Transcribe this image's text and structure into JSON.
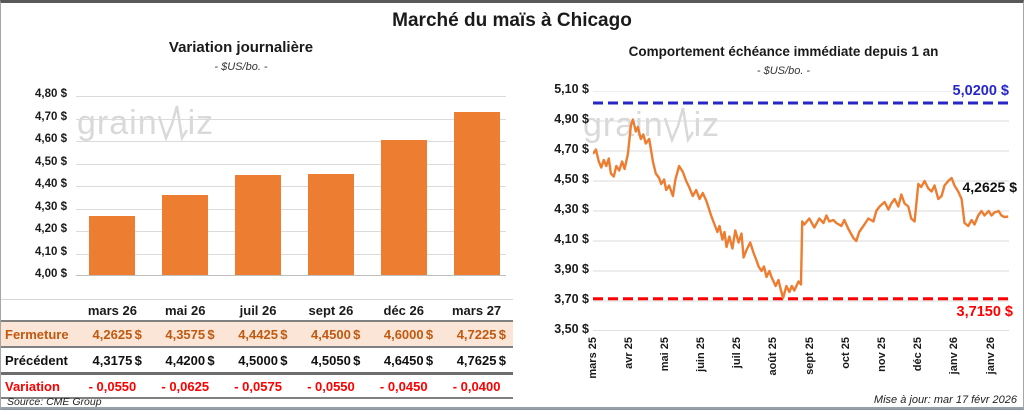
{
  "page": {
    "title": "Marché du maïs à Chicago",
    "source": "Source: CME Group",
    "updated": "Mise à jour: mar 17 févr 2026",
    "watermark": {
      "part1": "grain",
      "part2": "iz"
    }
  },
  "colors": {
    "accent_orange": "#ED7D31",
    "fermeture_bg": "#FBE5D6",
    "fermeture_text": "#C05A11",
    "negative_red": "#FE0000",
    "high_line_blue": "#2727C8",
    "low_line_red": "#FE0000",
    "gridline": "#DBDBDB",
    "watermark_gray": "#D9D9D9"
  },
  "chart_data": [
    {
      "id": "daily_variation_bar",
      "type": "bar",
      "title": "Variation journalière",
      "subtitle": "- $US/bo. -",
      "categories": [
        "mars 26",
        "mai 26",
        "juil 26",
        "sept 26",
        "déc 26",
        "mars 27"
      ],
      "values": [
        4.2625,
        4.3575,
        4.4425,
        4.45,
        4.6,
        4.7225
      ],
      "ylim": [
        4.0,
        4.8
      ],
      "y_tick_step": 0.1,
      "y_tick_labels": [
        "4,80 $",
        "4,70 $",
        "4,60 $",
        "4,50 $",
        "4,40 $",
        "4,30 $",
        "4,20 $",
        "4,10 $",
        "4,00 $"
      ],
      "grid": true,
      "legend": "none"
    },
    {
      "id": "front_month_line",
      "type": "line",
      "title": "Comportement échéance immédiate depuis 1 an",
      "subtitle": "- $US/bo. -",
      "x_tick_labels": [
        "mars 25",
        "avr 25",
        "mai 25",
        "juin 25",
        "juil 25",
        "août 25",
        "sept 25",
        "oct 25",
        "nov 25",
        "déc 25",
        "janv 26",
        "janv 26"
      ],
      "ylim": [
        3.5,
        5.1
      ],
      "y_tick_step": 0.2,
      "y_tick_labels": [
        "5,10 $",
        "4,90 $",
        "4,70 $",
        "4,50 $",
        "4,30 $",
        "4,10 $",
        "3,90 $",
        "3,70 $",
        "3,50 $"
      ],
      "high_line": {
        "value": 5.02,
        "label": "5,0200 $"
      },
      "low_line": {
        "value": 3.715,
        "label": "3,7150 $"
      },
      "last_value": 4.2625,
      "last_label": "4,2625 $",
      "grid": true,
      "legend": "none",
      "points": [
        [
          0,
          4.68
        ],
        [
          0.7,
          4.71
        ],
        [
          1.4,
          4.63
        ],
        [
          2,
          4.59
        ],
        [
          2.6,
          4.64
        ],
        [
          3.2,
          4.6
        ],
        [
          3.8,
          4.65
        ],
        [
          4.3,
          4.55
        ],
        [
          5,
          4.53
        ],
        [
          5.6,
          4.6
        ],
        [
          6.3,
          4.57
        ],
        [
          7,
          4.63
        ],
        [
          7.6,
          4.58
        ],
        [
          8.4,
          4.68
        ],
        [
          9.1,
          4.87
        ],
        [
          9.6,
          4.91
        ],
        [
          10.3,
          4.83
        ],
        [
          10.8,
          4.86
        ],
        [
          11.5,
          4.78
        ],
        [
          12.1,
          4.81
        ],
        [
          12.7,
          4.75
        ],
        [
          13.5,
          4.78
        ],
        [
          14.4,
          4.63
        ],
        [
          15.1,
          4.55
        ],
        [
          15.9,
          4.52
        ],
        [
          16.4,
          4.48
        ],
        [
          17.1,
          4.51
        ],
        [
          17.6,
          4.44
        ],
        [
          18.3,
          4.47
        ],
        [
          19.2,
          4.4
        ],
        [
          19.8,
          4.51
        ],
        [
          20.7,
          4.6
        ],
        [
          21.6,
          4.56
        ],
        [
          22.4,
          4.5
        ],
        [
          23.1,
          4.46
        ],
        [
          24,
          4.4
        ],
        [
          24.8,
          4.44
        ],
        [
          25.6,
          4.38
        ],
        [
          26.4,
          4.42
        ],
        [
          27.2,
          4.37
        ],
        [
          27.7,
          4.33
        ],
        [
          28.4,
          4.27
        ],
        [
          29.2,
          4.21
        ],
        [
          29.9,
          4.16
        ],
        [
          30.4,
          4.2
        ],
        [
          31.1,
          4.11
        ],
        [
          31.6,
          4.16
        ],
        [
          32.1,
          4.06
        ],
        [
          32.8,
          4.13
        ],
        [
          33.5,
          4.05
        ],
        [
          34.2,
          4.17
        ],
        [
          35,
          4.09
        ],
        [
          35.7,
          4.15
        ],
        [
          36.2,
          3.99
        ],
        [
          36.9,
          4.04
        ],
        [
          37.8,
          4.09
        ],
        [
          38.6,
          4.02
        ],
        [
          39.3,
          3.97
        ],
        [
          39.8,
          3.93
        ],
        [
          40.5,
          3.9
        ],
        [
          41.1,
          3.93
        ],
        [
          41.7,
          3.86
        ],
        [
          42.4,
          3.9
        ],
        [
          42.9,
          3.86
        ],
        [
          43.9,
          3.8
        ],
        [
          44.6,
          3.84
        ],
        [
          45.1,
          3.78
        ],
        [
          45.7,
          3.72
        ],
        [
          46.5,
          3.8
        ],
        [
          47.2,
          3.76
        ],
        [
          47.8,
          3.8
        ],
        [
          48.4,
          3.77
        ],
        [
          49.4,
          3.83
        ],
        [
          50,
          3.81
        ],
        [
          50.3,
          4.23
        ],
        [
          50.8,
          4.21
        ],
        [
          52,
          4.25
        ],
        [
          53.2,
          4.19
        ],
        [
          54.4,
          4.25
        ],
        [
          55.4,
          4.22
        ],
        [
          56.1,
          4.27
        ],
        [
          56.8,
          4.23
        ],
        [
          57.8,
          4.24
        ],
        [
          58.5,
          4.22
        ],
        [
          59.7,
          4.2
        ],
        [
          60.4,
          4.24
        ],
        [
          61.4,
          4.18
        ],
        [
          62.6,
          4.12
        ],
        [
          63.3,
          4.1
        ],
        [
          64,
          4.16
        ],
        [
          65,
          4.2
        ],
        [
          66.2,
          4.25
        ],
        [
          67.4,
          4.23
        ],
        [
          68.1,
          4.3
        ],
        [
          68.9,
          4.33
        ],
        [
          70.1,
          4.36
        ],
        [
          71,
          4.31
        ],
        [
          71.7,
          4.35
        ],
        [
          72.5,
          4.38
        ],
        [
          73.4,
          4.33
        ],
        [
          74.1,
          4.41
        ],
        [
          74.9,
          4.35
        ],
        [
          75.8,
          4.33
        ],
        [
          76.5,
          4.25
        ],
        [
          77.3,
          4.23
        ],
        [
          78.2,
          4.48
        ],
        [
          78.9,
          4.46
        ],
        [
          79.7,
          4.5
        ],
        [
          80.6,
          4.45
        ],
        [
          81.4,
          4.43
        ],
        [
          82.1,
          4.47
        ],
        [
          83,
          4.38
        ],
        [
          83.8,
          4.4
        ],
        [
          84.5,
          4.47
        ],
        [
          85.4,
          4.5
        ],
        [
          86.2,
          4.52
        ],
        [
          86.9,
          4.47
        ],
        [
          87.8,
          4.43
        ],
        [
          88.6,
          4.38
        ],
        [
          89.3,
          4.22
        ],
        [
          90.2,
          4.2
        ],
        [
          91,
          4.24
        ],
        [
          91.7,
          4.21
        ],
        [
          92.6,
          4.27
        ],
        [
          93.4,
          4.3
        ],
        [
          94.1,
          4.27
        ],
        [
          95.1,
          4.3
        ],
        [
          95.8,
          4.27
        ],
        [
          96.5,
          4.29
        ],
        [
          97.5,
          4.3
        ],
        [
          98.2,
          4.27
        ],
        [
          98.9,
          4.26
        ],
        [
          99.8,
          4.2625
        ]
      ]
    }
  ],
  "table": {
    "columns": [
      "mars 26",
      "mai 26",
      "juil 26",
      "sept 26",
      "déc 26",
      "mars 27"
    ],
    "fermeture": {
      "label": "Fermeture",
      "currency": "$",
      "values": [
        "4,2625",
        "4,3575",
        "4,4425",
        "4,4500",
        "4,6000",
        "4,7225"
      ]
    },
    "precedent": {
      "label": "Précédent",
      "currency": "$",
      "values": [
        "4,3175",
        "4,4200",
        "4,5000",
        "4,5050",
        "4,6450",
        "4,7625"
      ]
    },
    "variation": {
      "label": "Variation",
      "values": [
        "- 0,0550",
        "- 0,0625",
        "- 0,0575",
        "- 0,0550",
        "- 0,0450",
        "- 0,0400"
      ]
    }
  }
}
